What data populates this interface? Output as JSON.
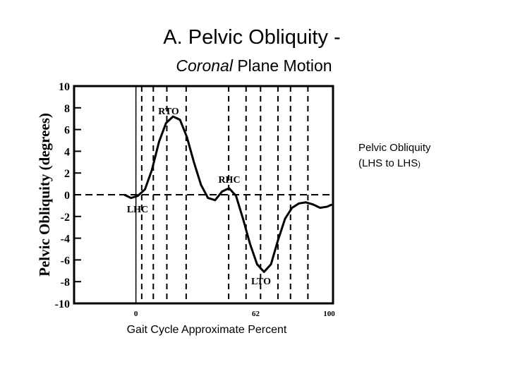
{
  "chart_data": {
    "type": "line",
    "title": "A. Pelvic Obliquity -",
    "subtitle": {
      "italic": "Coronal",
      "rest": "Plane Motion"
    },
    "x_label": "Gait Cycle Approximate Percent",
    "y_label": "Pelvic Obliquity (degrees)",
    "side_label": [
      "Pelvic Obliquity",
      "(LHS to LHS",
      ")"
    ],
    "xlim": [
      -32,
      102
    ],
    "ylim": [
      -10,
      10
    ],
    "xticks": [
      0,
      62,
      100
    ],
    "yticks": [
      -10,
      -8,
      -6,
      -4,
      -2,
      0,
      2,
      4,
      6,
      8,
      10
    ],
    "vlines": [
      3,
      9,
      16,
      26,
      48,
      57,
      64.5,
      73.5,
      80,
      89
    ],
    "annotations": [
      "RTO",
      "RHC",
      "LHC",
      "LTO"
    ],
    "series": [
      {
        "color": "#000000",
        "x": [
          -6,
          -2.5,
          1,
          4.7,
          8.3,
          12,
          15.6,
          19.2,
          22.8,
          26.4,
          30,
          33.7,
          37.3,
          41,
          44.6,
          48.2,
          51.8,
          55.4,
          59,
          62.7,
          66.3,
          69.9,
          73.5,
          77.2,
          80.8,
          84.4,
          88,
          91.7,
          95.3,
          99,
          101.4
        ],
        "values": [
          0,
          -0.3,
          -0.1,
          0.5,
          2.3,
          4.9,
          6.6,
          7.2,
          6.9,
          5.3,
          3,
          0.9,
          -0.3,
          -0.5,
          0.3,
          0.6,
          -0.1,
          -2.2,
          -4.5,
          -6.4,
          -7.1,
          -6.4,
          -4.2,
          -2.2,
          -1.2,
          -0.8,
          -0.7,
          -0.9,
          -1.2,
          -1.1,
          -0.9
        ]
      }
    ]
  }
}
